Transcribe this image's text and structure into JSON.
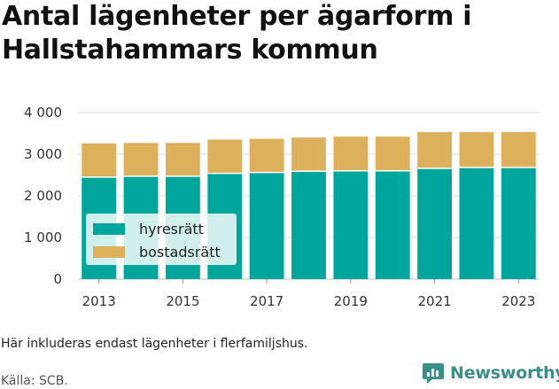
{
  "title_lines": [
    "Antal lägenheter per ägarform i",
    "Hallstahammars kommun"
  ],
  "note": "Här inkluderas endast lägenheter i flerfamiljshus.",
  "source": "Källa: SCB.",
  "brand": {
    "name": "Newsworthy",
    "icon": "newsworthy-logo-icon",
    "color": "#3a8f88"
  },
  "chart_data": {
    "type": "bar",
    "stacked": true,
    "x": [
      2013,
      2014,
      2015,
      2016,
      2017,
      2018,
      2019,
      2020,
      2021,
      2022,
      2023
    ],
    "x_tick_labels": [
      "2013",
      "2015",
      "2017",
      "2019",
      "2021",
      "2023"
    ],
    "y_ticks": [
      0,
      1000,
      2000,
      3000,
      4000
    ],
    "y_tick_labels": [
      "0",
      "1 000",
      "2 000",
      "3 000",
      "4 000"
    ],
    "ylim": [
      0,
      4200
    ],
    "grid": true,
    "legend_position": "bottom-left",
    "series": [
      {
        "name": "hyresrätt",
        "color": "#00a69c",
        "values": [
          2450,
          2470,
          2470,
          2540,
          2560,
          2590,
          2600,
          2600,
          2660,
          2680,
          2680
        ]
      },
      {
        "name": "bostadsrätt",
        "color": "#ddb05c",
        "values": [
          810,
          800,
          800,
          810,
          810,
          810,
          820,
          820,
          870,
          850,
          850
        ]
      }
    ]
  }
}
